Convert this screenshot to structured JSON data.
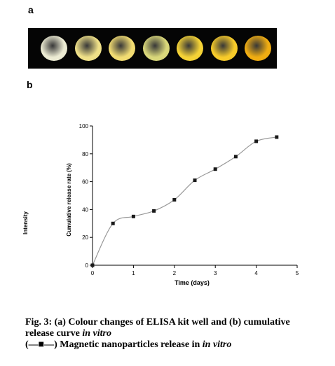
{
  "panels": {
    "a": "a",
    "b": "b"
  },
  "wells": [
    {
      "color": "#ecebd3"
    },
    {
      "color": "#efe088"
    },
    {
      "color": "#f2dc72"
    },
    {
      "color": "#d9d77a"
    },
    {
      "color": "#f5d336"
    },
    {
      "color": "#f7cb2a"
    },
    {
      "color": "#f0ad12"
    }
  ],
  "chart_data": {
    "type": "line",
    "outer_ylabel": "Intensity",
    "xlabel": "Time (days)",
    "ylabel": "Cumulative release rate (%)",
    "xlim": [
      0,
      5
    ],
    "ylim": [
      0,
      100
    ],
    "xticks": [
      0,
      1,
      2,
      3,
      4,
      5
    ],
    "yticks": [
      0,
      20,
      40,
      60,
      80,
      100
    ],
    "grid": false,
    "series": [
      {
        "marker": "square",
        "color": "#1a1a1a",
        "line_color": "#999999",
        "x": [
          0,
          0.5,
          1,
          1.5,
          2,
          2.5,
          3,
          3.5,
          4,
          4.5
        ],
        "y": [
          0,
          30,
          35,
          39,
          47,
          61,
          69,
          78,
          89,
          92
        ]
      }
    ]
  },
  "caption": {
    "line1": "Fig. 3: (a) Colour changes of ELISA kit well and (b) cumulative",
    "line2_prefix": "release curve ",
    "line2_italic": "in vitro",
    "line3_prefix": "(—■—) Magnetic nanoparticles release in ",
    "line3_italic": "in vitro"
  }
}
